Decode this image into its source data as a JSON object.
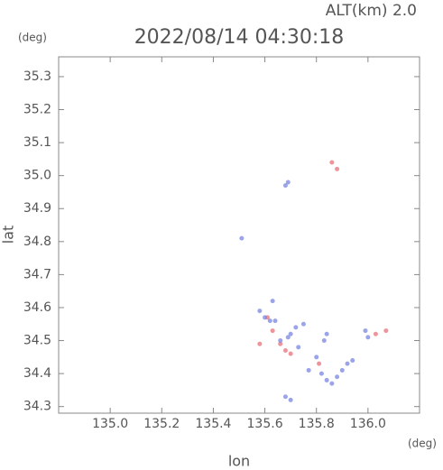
{
  "chart_data": {
    "type": "scatter",
    "title": "2022/08/14 04:30:18",
    "subtitle": "ALT(km) 2.0",
    "y_unit": "(deg)",
    "x_unit": "(deg)",
    "xlabel": "lon",
    "ylabel": "lat",
    "xlim": [
      134.8,
      136.2
    ],
    "ylim": [
      34.28,
      35.36
    ],
    "xticks": [
      {
        "value": 135,
        "label": "135.0"
      },
      135.2,
      135.4,
      135.6,
      135.8,
      {
        "value": 136,
        "label": "136.0"
      }
    ],
    "yticks": [
      34.3,
      34.4,
      34.5,
      34.6,
      34.7,
      34.8,
      34.9,
      {
        "value": 35,
        "label": "35.0"
      },
      35.1,
      35.2,
      35.3
    ],
    "series": [
      {
        "color": "#e8707a",
        "x": [
          135.86,
          135.88,
          135.63,
          135.66,
          135.68,
          135.7,
          135.81,
          136.07,
          136.03,
          135.58,
          135.61
        ],
        "values": [
          35.04,
          35.02,
          34.53,
          34.49,
          34.47,
          34.46,
          34.43,
          34.53,
          34.52,
          34.49,
          34.57
        ]
      },
      {
        "color": "#7a86e0",
        "x": [
          135.68,
          135.69,
          135.51,
          135.63,
          135.58,
          135.6,
          135.62,
          135.64,
          135.72,
          135.75,
          135.7,
          135.66,
          135.69,
          135.73,
          135.7,
          135.68,
          135.82,
          135.84,
          135.86,
          135.88,
          135.9,
          135.92,
          135.94,
          135.84,
          135.83,
          135.99,
          136.0,
          135.8,
          135.77
        ],
        "values": [
          34.97,
          34.98,
          34.81,
          34.62,
          34.59,
          34.57,
          34.56,
          34.56,
          34.54,
          34.55,
          34.52,
          34.5,
          34.51,
          34.48,
          34.32,
          34.33,
          34.4,
          34.38,
          34.37,
          34.39,
          34.41,
          34.43,
          34.44,
          34.52,
          34.5,
          34.53,
          34.51,
          34.45,
          34.41
        ]
      }
    ]
  }
}
